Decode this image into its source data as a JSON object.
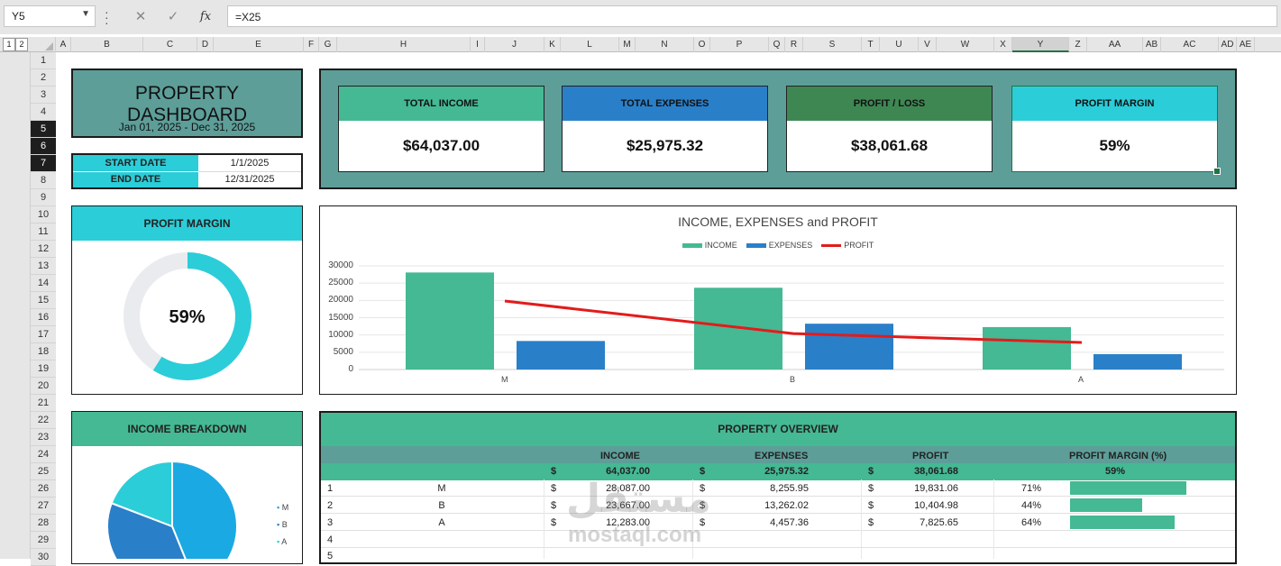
{
  "formula_bar": {
    "name_box": "Y5",
    "formula": "=X25"
  },
  "columns": [
    "A",
    "B",
    "C",
    "D",
    "E",
    "F",
    "G",
    "H",
    "I",
    "J",
    "K",
    "L",
    "M",
    "N",
    "O",
    "P",
    "Q",
    "R",
    "S",
    "T",
    "U",
    "V",
    "W",
    "X",
    "Y",
    "Z",
    "AA",
    "AB",
    "AC",
    "AD",
    "AE"
  ],
  "outline_levels": [
    "1",
    "2"
  ],
  "rows": [
    "1",
    "2",
    "3",
    "4",
    "5",
    "6",
    "7",
    "8",
    "9",
    "10",
    "11",
    "12",
    "13",
    "14",
    "15",
    "16",
    "17",
    "18",
    "19",
    "20",
    "21",
    "22",
    "23",
    "24",
    "25",
    "26",
    "27",
    "28",
    "29",
    "30"
  ],
  "dashboard": {
    "title": "PROPERTY DASHBOARD",
    "date_range": "Jan 01, 2025 - Dec 31, 2025",
    "start_label": "START DATE",
    "start_value": "1/1/2025",
    "end_label": "END DATE",
    "end_value": "12/31/2025"
  },
  "kpis": [
    {
      "label": "TOTAL INCOME",
      "value": "$64,037.00",
      "color": "#44b993"
    },
    {
      "label": "TOTAL EXPENSES",
      "value": "$25,975.32",
      "color": "#2a7fc9"
    },
    {
      "label": "PROFIT / LOSS",
      "value": "$38,061.68",
      "color": "#3e8753"
    },
    {
      "label": "PROFIT MARGIN",
      "value": "59%",
      "color": "#2bcdd8"
    }
  ],
  "profit_margin_card": {
    "title": "PROFIT MARGIN",
    "value": "59%",
    "fraction": 0.59,
    "color": "#2bcdd8",
    "track_color": "#e9ebef"
  },
  "income_breakdown": {
    "title": "INCOME BREAKDOWN",
    "legend": [
      "M",
      "B",
      "A"
    ]
  },
  "chart_data": [
    {
      "type": "bar",
      "title": "INCOME, EXPENSES and PROFIT",
      "categories": [
        "M",
        "B",
        "A"
      ],
      "series": [
        {
          "name": "INCOME",
          "values": [
            28087,
            23667,
            12283
          ],
          "color": "#44b993"
        },
        {
          "name": "EXPENSES",
          "values": [
            8256,
            13262,
            4457
          ],
          "color": "#2a7fc9"
        },
        {
          "name": "PROFIT",
          "values": [
            19831,
            10405,
            7826
          ],
          "color": "#e31b1b",
          "kind": "line"
        }
      ],
      "yticks": [
        "30000",
        "25000",
        "20000",
        "15000",
        "10000",
        "5000",
        "0"
      ],
      "ylim": [
        0,
        30000
      ],
      "legend_position": "top",
      "grid": true
    },
    {
      "type": "pie",
      "title": "INCOME BREAKDOWN",
      "labels": [
        "M",
        "B",
        "A"
      ],
      "values": [
        28087,
        23667,
        12283
      ],
      "colors": [
        "#1ba9e3",
        "#2a7fc9",
        "#2bcdd8"
      ]
    }
  ],
  "overview": {
    "title": "PROPERTY OVERVIEW",
    "headers": [
      "INCOME",
      "EXPENSES",
      "PROFIT",
      "PROFIT MARGIN (%)"
    ],
    "currency": "$",
    "totals": {
      "income": "64,037.00",
      "expenses": "25,975.32",
      "profit": "38,061.68",
      "margin": "59%"
    },
    "rows": [
      {
        "n": "1",
        "name": "M",
        "income": "28,087.00",
        "expenses": "8,255.95",
        "profit": "19,831.06",
        "margin": "71%",
        "margin_value": 0.71
      },
      {
        "n": "2",
        "name": "B",
        "income": "23,667.00",
        "expenses": "13,262.02",
        "profit": "10,404.98",
        "margin": "44%",
        "margin_value": 0.44
      },
      {
        "n": "3",
        "name": "A",
        "income": "12,283.00",
        "expenses": "4,457.36",
        "profit": "7,825.65",
        "margin": "64%",
        "margin_value": 0.64
      },
      {
        "n": "4"
      },
      {
        "n": "5"
      }
    ]
  },
  "watermark": {
    "arabic": "مستقل",
    "latin": "mostaql.com"
  }
}
